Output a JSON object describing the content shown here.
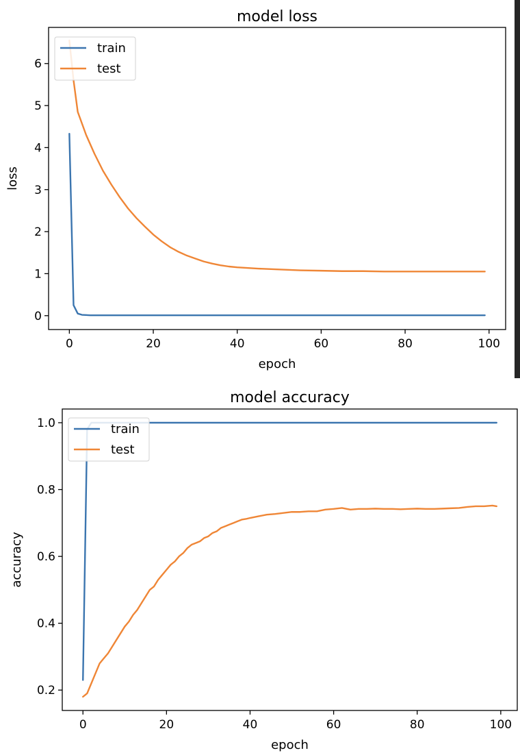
{
  "colors": {
    "train": "#3b75af",
    "test": "#ef8636"
  },
  "chart_data": [
    {
      "id": "loss",
      "type": "line",
      "title": "model loss",
      "xlabel": "epoch",
      "ylabel": "loss",
      "xlim": [
        -4.95,
        103.95
      ],
      "ylim": [
        -0.33,
        6.86
      ],
      "xticks": [
        0,
        20,
        40,
        60,
        80,
        100
      ],
      "xtick_labels": [
        "0",
        "20",
        "40",
        "60",
        "80",
        "100"
      ],
      "yticks": [
        0,
        1,
        2,
        3,
        4,
        5,
        6
      ],
      "ytick_labels": [
        "0",
        "1",
        "2",
        "3",
        "4",
        "5",
        "6"
      ],
      "grid": false,
      "legend_position": "upper left",
      "series": [
        {
          "name": "train",
          "color": "#3b75af",
          "x": [
            0,
            1,
            2,
            3,
            5,
            10,
            20,
            40,
            60,
            80,
            99
          ],
          "y": [
            4.33,
            0.25,
            0.05,
            0.02,
            0.01,
            0.01,
            0.01,
            0.01,
            0.01,
            0.01,
            0.01
          ]
        },
        {
          "name": "test",
          "color": "#ef8636",
          "x": [
            0,
            1,
            2,
            4,
            6,
            8,
            10,
            12,
            14,
            16,
            18,
            20,
            22,
            24,
            26,
            28,
            30,
            32,
            34,
            36,
            38,
            40,
            45,
            50,
            55,
            60,
            65,
            70,
            75,
            80,
            85,
            90,
            95,
            99
          ],
          "y": [
            6.55,
            5.6,
            4.85,
            4.3,
            3.85,
            3.45,
            3.12,
            2.82,
            2.55,
            2.32,
            2.12,
            1.93,
            1.77,
            1.63,
            1.52,
            1.43,
            1.36,
            1.29,
            1.24,
            1.2,
            1.17,
            1.15,
            1.12,
            1.1,
            1.08,
            1.07,
            1.06,
            1.06,
            1.05,
            1.05,
            1.05,
            1.05,
            1.05,
            1.05
          ]
        }
      ]
    },
    {
      "id": "accuracy",
      "type": "line",
      "title": "model accuracy",
      "xlabel": "epoch",
      "ylabel": "accuracy",
      "xlim": [
        -4.95,
        103.95
      ],
      "ylim": [
        0.139,
        1.041
      ],
      "xticks": [
        0,
        20,
        40,
        60,
        80,
        100
      ],
      "xtick_labels": [
        "0",
        "20",
        "40",
        "60",
        "80",
        "100"
      ],
      "yticks": [
        0.2,
        0.4,
        0.6,
        0.8,
        1.0
      ],
      "ytick_labels": [
        "0.2",
        "0.4",
        "0.6",
        "0.8",
        "1.0"
      ],
      "grid": false,
      "legend_position": "upper left",
      "series": [
        {
          "name": "train",
          "color": "#3b75af",
          "x": [
            0,
            1,
            2,
            3,
            5,
            10,
            20,
            40,
            60,
            80,
            99
          ],
          "y": [
            0.23,
            0.98,
            1.0,
            1.0,
            1.0,
            1.0,
            1.0,
            1.0,
            1.0,
            1.0,
            1.0
          ]
        },
        {
          "name": "test",
          "color": "#ef8636",
          "x": [
            0,
            1,
            2,
            3,
            4,
            5,
            6,
            7,
            8,
            9,
            10,
            11,
            12,
            13,
            14,
            15,
            16,
            17,
            18,
            19,
            20,
            21,
            22,
            23,
            24,
            25,
            26,
            27,
            28,
            29,
            30,
            31,
            32,
            33,
            34,
            35,
            36,
            37,
            38,
            39,
            40,
            42,
            44,
            46,
            48,
            50,
            52,
            54,
            56,
            58,
            60,
            62,
            64,
            66,
            68,
            70,
            72,
            74,
            76,
            78,
            80,
            82,
            84,
            86,
            88,
            90,
            92,
            94,
            96,
            98,
            99
          ],
          "y": [
            0.18,
            0.19,
            0.22,
            0.25,
            0.28,
            0.295,
            0.31,
            0.33,
            0.35,
            0.37,
            0.39,
            0.405,
            0.425,
            0.44,
            0.46,
            0.48,
            0.5,
            0.51,
            0.53,
            0.545,
            0.56,
            0.575,
            0.585,
            0.6,
            0.61,
            0.625,
            0.635,
            0.64,
            0.645,
            0.655,
            0.66,
            0.67,
            0.675,
            0.685,
            0.69,
            0.695,
            0.7,
            0.705,
            0.71,
            0.712,
            0.715,
            0.72,
            0.725,
            0.727,
            0.73,
            0.733,
            0.733,
            0.735,
            0.735,
            0.74,
            0.742,
            0.745,
            0.74,
            0.742,
            0.742,
            0.743,
            0.742,
            0.742,
            0.741,
            0.742,
            0.743,
            0.742,
            0.742,
            0.743,
            0.744,
            0.745,
            0.748,
            0.75,
            0.75,
            0.752,
            0.75
          ]
        }
      ]
    }
  ]
}
